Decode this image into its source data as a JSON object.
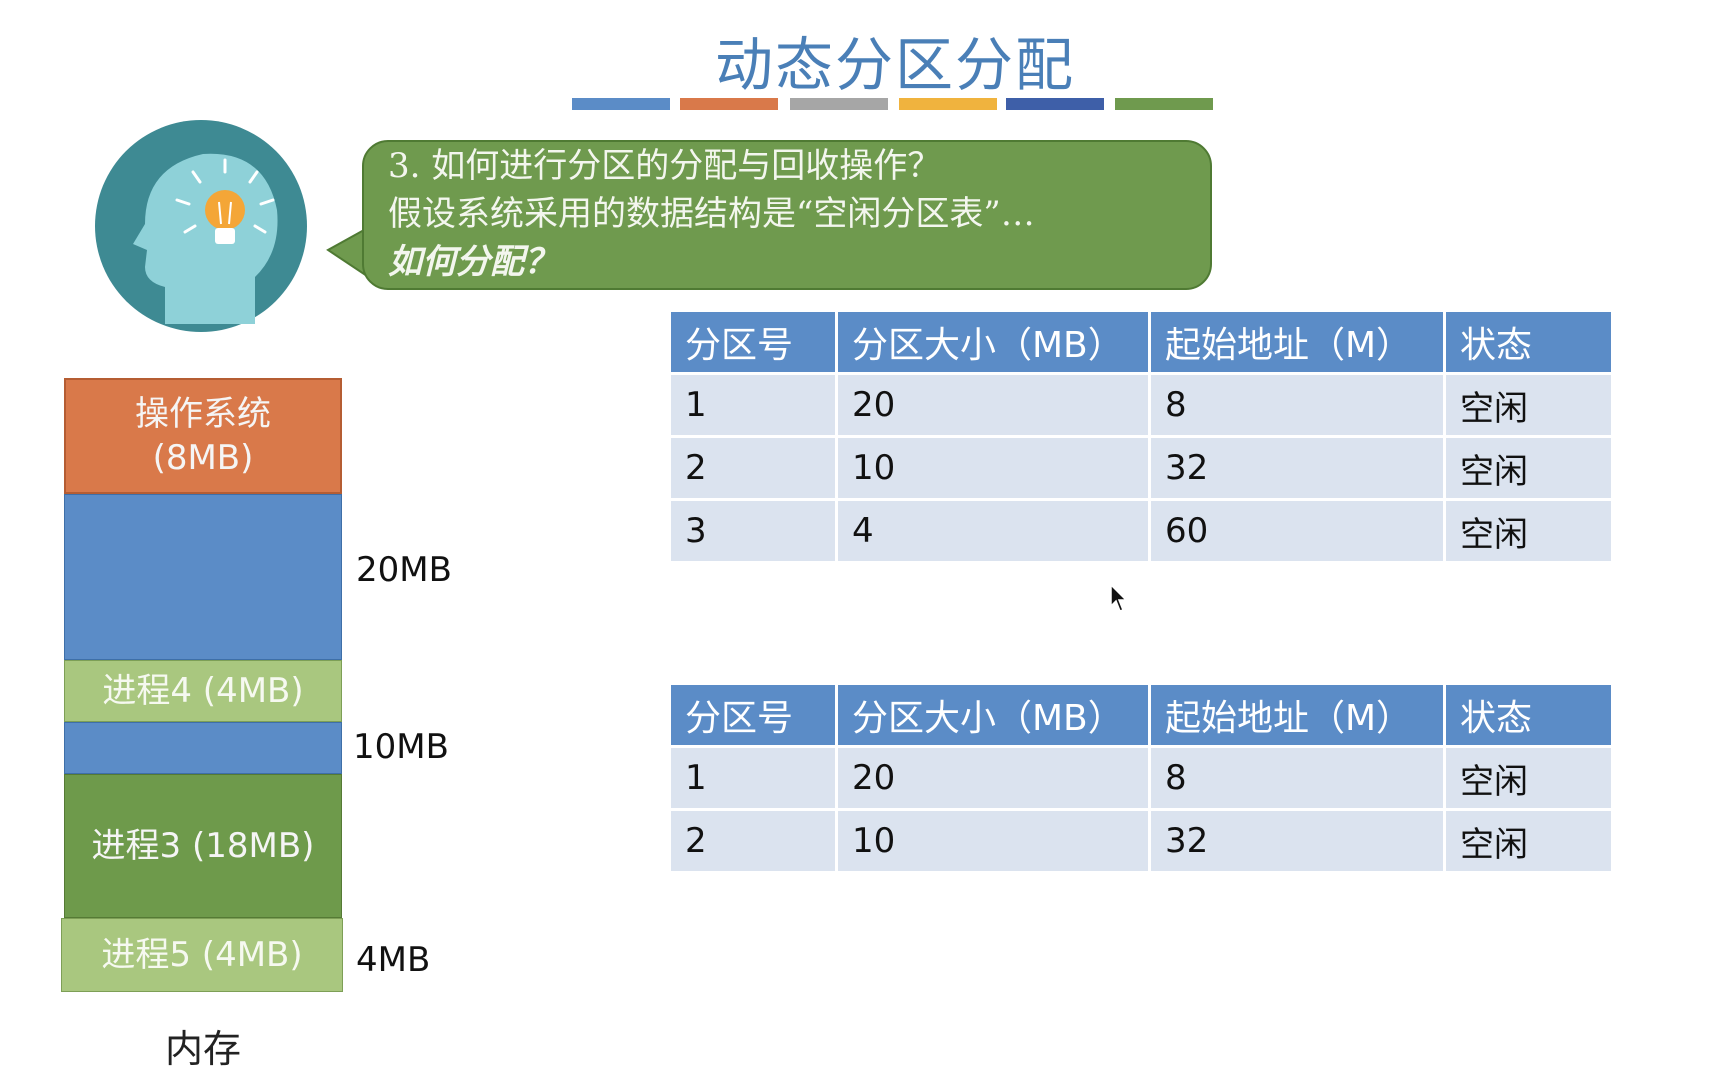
{
  "title": "动态分区分配",
  "accent_colors": [
    "#5b8cc7",
    "#d9794a",
    "#a6a6a6",
    "#f0b33e",
    "#3e5fa8",
    "#6f9a4e"
  ],
  "bubble": {
    "line1": "3. 如何进行分区的分配与回收操作？",
    "line2": "假设系统采用的数据结构是“空闲分区表”…",
    "line3": "如何分配？"
  },
  "memory": {
    "label": "内存",
    "blocks": [
      {
        "name": "操作系统",
        "size": "(8MB)"
      },
      {
        "name": "",
        "size": ""
      },
      {
        "name": "进程4 (4MB)",
        "size": ""
      },
      {
        "name": "",
        "size": ""
      },
      {
        "name": "进程3 (18MB)",
        "size": ""
      },
      {
        "name": "进程5 (4MB)",
        "size": ""
      }
    ],
    "side_labels": [
      "20MB",
      "10MB",
      "4MB"
    ]
  },
  "table1": {
    "headers": [
      "分区号",
      "分区大小（MB）",
      "起始地址（M）",
      "状态"
    ],
    "rows": [
      [
        "1",
        "20",
        "8",
        "空闲"
      ],
      [
        "2",
        "10",
        "32",
        "空闲"
      ],
      [
        "3",
        "4",
        "60",
        "空闲"
      ]
    ]
  },
  "table2": {
    "headers": [
      "分区号",
      "分区大小（MB）",
      "起始地址（M）",
      "状态"
    ],
    "rows": [
      [
        "1",
        "20",
        "8",
        "空闲"
      ],
      [
        "2",
        "10",
        "32",
        "空闲"
      ]
    ]
  }
}
